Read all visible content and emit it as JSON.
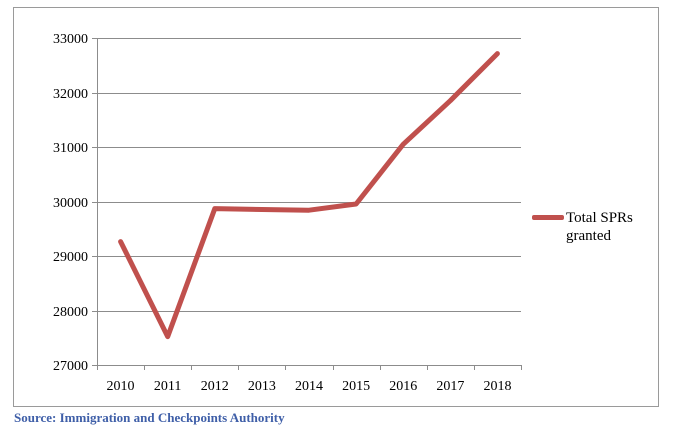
{
  "chart_data": {
    "type": "line",
    "categories": [
      "2010",
      "2011",
      "2012",
      "2013",
      "2014",
      "2015",
      "2016",
      "2017",
      "2018"
    ],
    "series": [
      {
        "name": "Total SPRs granted",
        "values": [
          29265,
          27521,
          29869,
          29854,
          29841,
          29955,
          31049,
          31849,
          32713
        ],
        "color": "#c0504d"
      }
    ],
    "ylim": [
      27000,
      33000
    ],
    "yticks": [
      27000,
      28000,
      29000,
      30000,
      31000,
      32000,
      33000
    ],
    "grid": true,
    "legend_position": "right"
  },
  "source_note": "Source: Immigration and Checkpoints Authority"
}
